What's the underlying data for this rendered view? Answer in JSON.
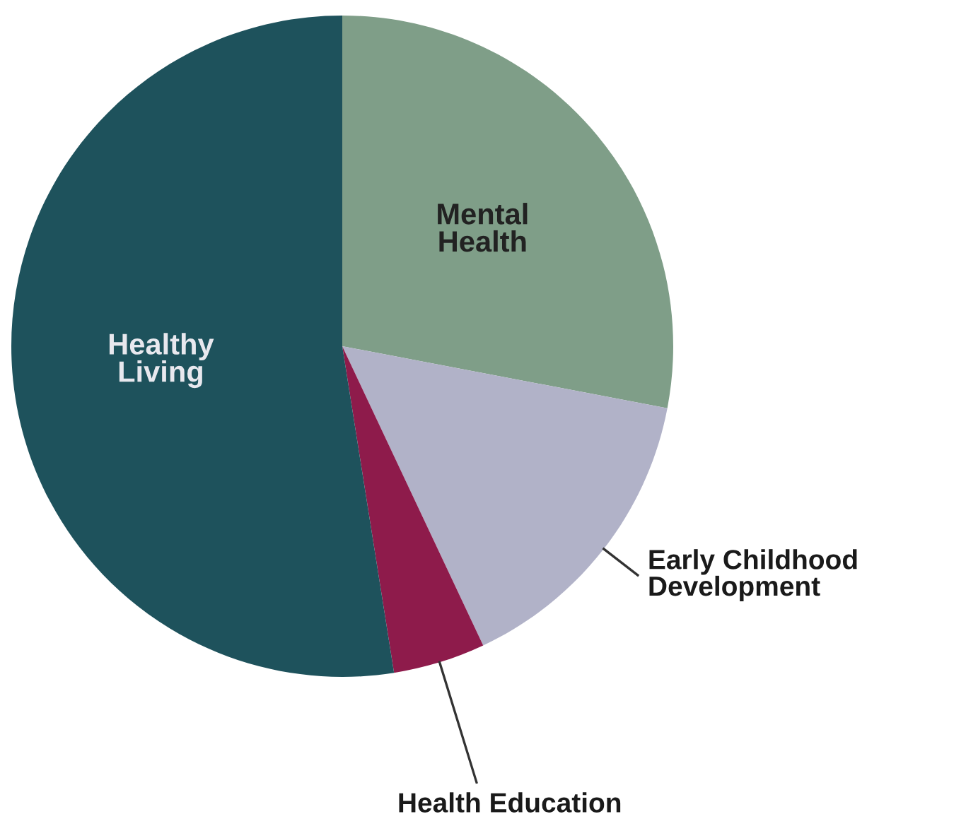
{
  "chart_data": {
    "type": "pie",
    "categories": [
      "Mental\nHealth",
      "Early Childhood\nDevelopment",
      "Health Education",
      "Healthy\nLiving"
    ],
    "values": [
      28,
      15,
      4.5,
      52.5
    ],
    "colors": [
      "#7f9e88",
      "#b1b2c8",
      "#8e1b4b",
      "#1e525c"
    ],
    "legend": false
  }
}
